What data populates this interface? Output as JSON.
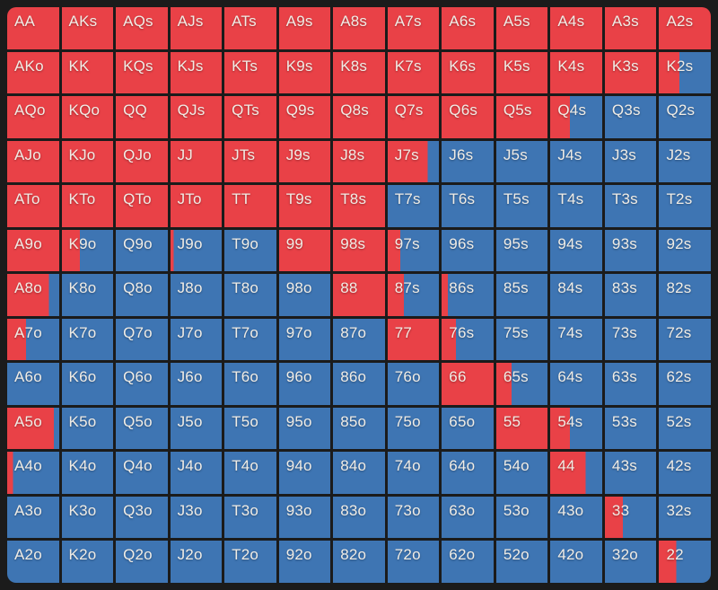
{
  "colors": {
    "in_range_red": "#e94147",
    "out_range_blue": "#3e75b3",
    "background": "#1b1b1b",
    "text": "#f1ede6"
  },
  "chart_data": {
    "type": "heatmap",
    "description_of_encoding": "13x13 poker starting-hand matrix; fill = fraction of cell shaded red from the left (1 = fully red / in range, 0 = fully blue / out of range)",
    "rows": [
      {
        "cells": [
          {
            "label": "AA",
            "fill": 1
          },
          {
            "label": "AKs",
            "fill": 1
          },
          {
            "label": "AQs",
            "fill": 1
          },
          {
            "label": "AJs",
            "fill": 1
          },
          {
            "label": "ATs",
            "fill": 1
          },
          {
            "label": "A9s",
            "fill": 1
          },
          {
            "label": "A8s",
            "fill": 1
          },
          {
            "label": "A7s",
            "fill": 1
          },
          {
            "label": "A6s",
            "fill": 1
          },
          {
            "label": "A5s",
            "fill": 1
          },
          {
            "label": "A4s",
            "fill": 1
          },
          {
            "label": "A3s",
            "fill": 1
          },
          {
            "label": "A2s",
            "fill": 1
          }
        ]
      },
      {
        "cells": [
          {
            "label": "AKo",
            "fill": 1
          },
          {
            "label": "KK",
            "fill": 1
          },
          {
            "label": "KQs",
            "fill": 1
          },
          {
            "label": "KJs",
            "fill": 1
          },
          {
            "label": "KTs",
            "fill": 1
          },
          {
            "label": "K9s",
            "fill": 1
          },
          {
            "label": "K8s",
            "fill": 1
          },
          {
            "label": "K7s",
            "fill": 1
          },
          {
            "label": "K6s",
            "fill": 1
          },
          {
            "label": "K5s",
            "fill": 1
          },
          {
            "label": "K4s",
            "fill": 1
          },
          {
            "label": "K3s",
            "fill": 1
          },
          {
            "label": "K2s",
            "fill": 0.4
          }
        ]
      },
      {
        "cells": [
          {
            "label": "AQo",
            "fill": 1
          },
          {
            "label": "KQo",
            "fill": 1
          },
          {
            "label": "QQ",
            "fill": 1
          },
          {
            "label": "QJs",
            "fill": 1
          },
          {
            "label": "QTs",
            "fill": 1
          },
          {
            "label": "Q9s",
            "fill": 1
          },
          {
            "label": "Q8s",
            "fill": 1
          },
          {
            "label": "Q7s",
            "fill": 1
          },
          {
            "label": "Q6s",
            "fill": 1
          },
          {
            "label": "Q5s",
            "fill": 1
          },
          {
            "label": "Q4s",
            "fill": 0.38
          },
          {
            "label": "Q3s",
            "fill": 0
          },
          {
            "label": "Q2s",
            "fill": 0
          }
        ]
      },
      {
        "cells": [
          {
            "label": "AJo",
            "fill": 1
          },
          {
            "label": "KJo",
            "fill": 1
          },
          {
            "label": "QJo",
            "fill": 1
          },
          {
            "label": "JJ",
            "fill": 1
          },
          {
            "label": "JTs",
            "fill": 1
          },
          {
            "label": "J9s",
            "fill": 1
          },
          {
            "label": "J8s",
            "fill": 1
          },
          {
            "label": "J7s",
            "fill": 0.78
          },
          {
            "label": "J6s",
            "fill": 0
          },
          {
            "label": "J5s",
            "fill": 0
          },
          {
            "label": "J4s",
            "fill": 0
          },
          {
            "label": "J3s",
            "fill": 0
          },
          {
            "label": "J2s",
            "fill": 0
          }
        ]
      },
      {
        "cells": [
          {
            "label": "ATo",
            "fill": 1
          },
          {
            "label": "KTo",
            "fill": 1
          },
          {
            "label": "QTo",
            "fill": 1
          },
          {
            "label": "JTo",
            "fill": 1
          },
          {
            "label": "TT",
            "fill": 1
          },
          {
            "label": "T9s",
            "fill": 1
          },
          {
            "label": "T8s",
            "fill": 1
          },
          {
            "label": "T7s",
            "fill": 0
          },
          {
            "label": "T6s",
            "fill": 0
          },
          {
            "label": "T5s",
            "fill": 0
          },
          {
            "label": "T4s",
            "fill": 0
          },
          {
            "label": "T3s",
            "fill": 0
          },
          {
            "label": "T2s",
            "fill": 0
          }
        ]
      },
      {
        "cells": [
          {
            "label": "A9o",
            "fill": 1
          },
          {
            "label": "K9o",
            "fill": 0.35
          },
          {
            "label": "Q9o",
            "fill": 0
          },
          {
            "label": "J9o",
            "fill": 0.06
          },
          {
            "label": "T9o",
            "fill": 0
          },
          {
            "label": "99",
            "fill": 1
          },
          {
            "label": "98s",
            "fill": 1
          },
          {
            "label": "97s",
            "fill": 0.25
          },
          {
            "label": "96s",
            "fill": 0
          },
          {
            "label": "95s",
            "fill": 0
          },
          {
            "label": "94s",
            "fill": 0
          },
          {
            "label": "93s",
            "fill": 0
          },
          {
            "label": "92s",
            "fill": 0
          }
        ]
      },
      {
        "cells": [
          {
            "label": "A8o",
            "fill": 0.8
          },
          {
            "label": "K8o",
            "fill": 0
          },
          {
            "label": "Q8o",
            "fill": 0
          },
          {
            "label": "J8o",
            "fill": 0
          },
          {
            "label": "T8o",
            "fill": 0
          },
          {
            "label": "98o",
            "fill": 0
          },
          {
            "label": "88",
            "fill": 1
          },
          {
            "label": "87s",
            "fill": 0.32
          },
          {
            "label": "86s",
            "fill": 0.12
          },
          {
            "label": "85s",
            "fill": 0
          },
          {
            "label": "84s",
            "fill": 0
          },
          {
            "label": "83s",
            "fill": 0
          },
          {
            "label": "82s",
            "fill": 0
          }
        ]
      },
      {
        "cells": [
          {
            "label": "A7o",
            "fill": 0.36
          },
          {
            "label": "K7o",
            "fill": 0
          },
          {
            "label": "Q7o",
            "fill": 0
          },
          {
            "label": "J7o",
            "fill": 0
          },
          {
            "label": "T7o",
            "fill": 0
          },
          {
            "label": "97o",
            "fill": 0
          },
          {
            "label": "87o",
            "fill": 0
          },
          {
            "label": "77",
            "fill": 1
          },
          {
            "label": "76s",
            "fill": 0.28
          },
          {
            "label": "75s",
            "fill": 0
          },
          {
            "label": "74s",
            "fill": 0
          },
          {
            "label": "73s",
            "fill": 0
          },
          {
            "label": "72s",
            "fill": 0
          }
        ]
      },
      {
        "cells": [
          {
            "label": "A6o",
            "fill": 0
          },
          {
            "label": "K6o",
            "fill": 0
          },
          {
            "label": "Q6o",
            "fill": 0
          },
          {
            "label": "J6o",
            "fill": 0
          },
          {
            "label": "T6o",
            "fill": 0
          },
          {
            "label": "96o",
            "fill": 0
          },
          {
            "label": "86o",
            "fill": 0
          },
          {
            "label": "76o",
            "fill": 0
          },
          {
            "label": "66",
            "fill": 1
          },
          {
            "label": "65s",
            "fill": 0.3
          },
          {
            "label": "64s",
            "fill": 0
          },
          {
            "label": "63s",
            "fill": 0
          },
          {
            "label": "62s",
            "fill": 0
          }
        ]
      },
      {
        "cells": [
          {
            "label": "A5o",
            "fill": 0.9
          },
          {
            "label": "K5o",
            "fill": 0
          },
          {
            "label": "Q5o",
            "fill": 0
          },
          {
            "label": "J5o",
            "fill": 0
          },
          {
            "label": "T5o",
            "fill": 0
          },
          {
            "label": "95o",
            "fill": 0
          },
          {
            "label": "85o",
            "fill": 0
          },
          {
            "label": "75o",
            "fill": 0
          },
          {
            "label": "65o",
            "fill": 0
          },
          {
            "label": "55",
            "fill": 1
          },
          {
            "label": "54s",
            "fill": 0.38
          },
          {
            "label": "53s",
            "fill": 0
          },
          {
            "label": "52s",
            "fill": 0
          }
        ]
      },
      {
        "cells": [
          {
            "label": "A4o",
            "fill": 0.11
          },
          {
            "label": "K4o",
            "fill": 0
          },
          {
            "label": "Q4o",
            "fill": 0
          },
          {
            "label": "J4o",
            "fill": 0
          },
          {
            "label": "T4o",
            "fill": 0
          },
          {
            "label": "94o",
            "fill": 0
          },
          {
            "label": "84o",
            "fill": 0
          },
          {
            "label": "74o",
            "fill": 0
          },
          {
            "label": "64o",
            "fill": 0
          },
          {
            "label": "54o",
            "fill": 0
          },
          {
            "label": "44",
            "fill": 0.68
          },
          {
            "label": "43s",
            "fill": 0
          },
          {
            "label": "42s",
            "fill": 0
          }
        ]
      },
      {
        "cells": [
          {
            "label": "A3o",
            "fill": 0
          },
          {
            "label": "K3o",
            "fill": 0
          },
          {
            "label": "Q3o",
            "fill": 0
          },
          {
            "label": "J3o",
            "fill": 0
          },
          {
            "label": "T3o",
            "fill": 0
          },
          {
            "label": "93o",
            "fill": 0
          },
          {
            "label": "83o",
            "fill": 0
          },
          {
            "label": "73o",
            "fill": 0
          },
          {
            "label": "63o",
            "fill": 0
          },
          {
            "label": "53o",
            "fill": 0
          },
          {
            "label": "43o",
            "fill": 0
          },
          {
            "label": "33",
            "fill": 0.35
          },
          {
            "label": "32s",
            "fill": 0
          }
        ]
      },
      {
        "cells": [
          {
            "label": "A2o",
            "fill": 0
          },
          {
            "label": "K2o",
            "fill": 0
          },
          {
            "label": "Q2o",
            "fill": 0
          },
          {
            "label": "J2o",
            "fill": 0
          },
          {
            "label": "T2o",
            "fill": 0
          },
          {
            "label": "92o",
            "fill": 0
          },
          {
            "label": "82o",
            "fill": 0
          },
          {
            "label": "72o",
            "fill": 0
          },
          {
            "label": "62o",
            "fill": 0
          },
          {
            "label": "52o",
            "fill": 0
          },
          {
            "label": "42o",
            "fill": 0
          },
          {
            "label": "32o",
            "fill": 0
          },
          {
            "label": "22",
            "fill": 0.34
          }
        ]
      }
    ]
  }
}
